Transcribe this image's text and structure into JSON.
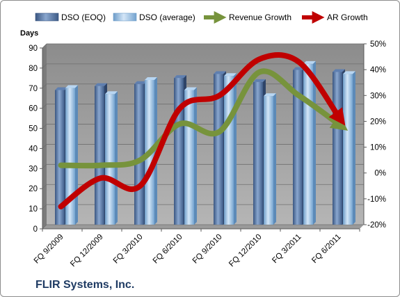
{
  "chart_data": {
    "type": "bar",
    "caption": "FLIR Systems, Inc.",
    "ylabel": "Days",
    "ylim": [
      0,
      90
    ],
    "y_ticks": [
      0,
      10,
      20,
      30,
      40,
      50,
      60,
      70,
      80,
      90
    ],
    "y2lim": [
      -20,
      50
    ],
    "y2_ticks": [
      "-20%",
      "-10%",
      "0%",
      "10%",
      "20%",
      "30%",
      "40%",
      "50%"
    ],
    "y2_tick_values": [
      -20,
      -10,
      0,
      10,
      20,
      30,
      40,
      50
    ],
    "categories": [
      "FQ 9/2009",
      "FQ 12/2009",
      "FQ 3/2010",
      "FQ 6/2010",
      "FQ 9/2010",
      "FQ 12/2010",
      "FQ 3/2011",
      "FQ 6/2011"
    ],
    "grid": true,
    "legend_position": "top",
    "series": [
      {
        "name": "DSO (EOQ)",
        "kind": "bar",
        "axis": "left",
        "color": "#4f6d9a",
        "values": [
          67,
          69,
          70,
          73,
          75,
          71,
          77,
          76
        ]
      },
      {
        "name": "DSO (average)",
        "kind": "bar",
        "axis": "left",
        "color": "#9dc3e6",
        "values": [
          68,
          65,
          72,
          67,
          74,
          64,
          80,
          75
        ]
      },
      {
        "name": "Revenue Growth",
        "kind": "line",
        "axis": "right",
        "color": "#77933c",
        "values": [
          3,
          3,
          5,
          19,
          16,
          39,
          30,
          19
        ]
      },
      {
        "name": "AR Growth",
        "kind": "line",
        "axis": "right",
        "color": "#c00000",
        "values": [
          -13,
          -2,
          -5,
          25,
          30,
          44,
          43,
          22
        ]
      }
    ]
  }
}
